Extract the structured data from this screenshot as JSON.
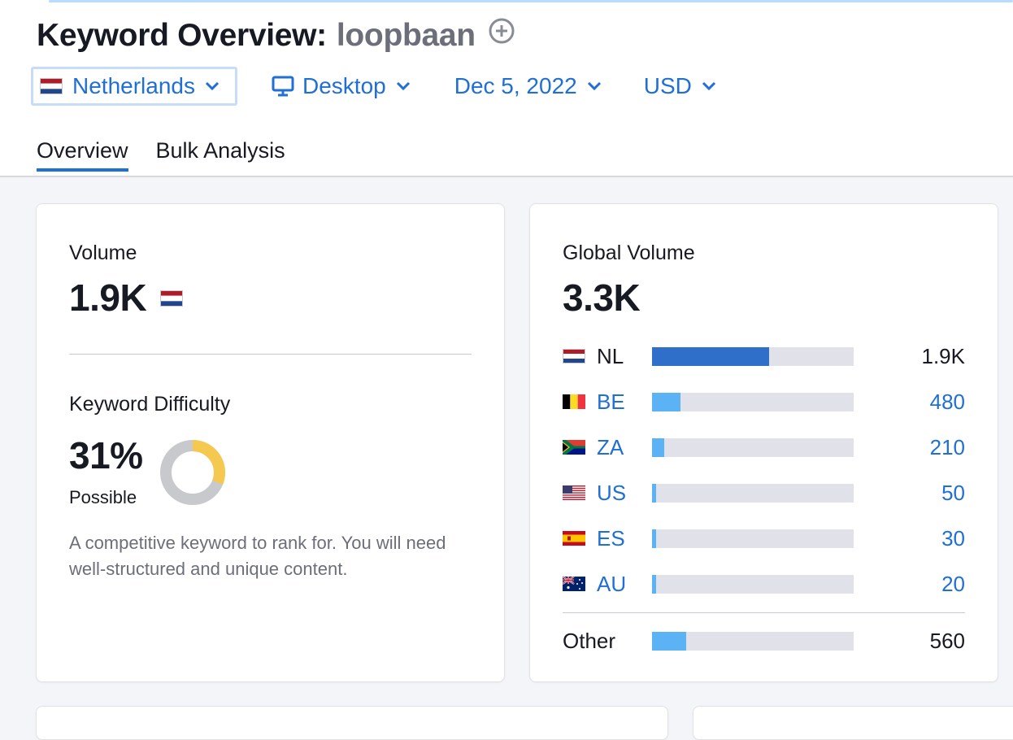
{
  "header": {
    "title_prefix": "Keyword Overview:",
    "keyword": "loopbaan",
    "filters": {
      "database": "Netherlands",
      "device": "Desktop",
      "date": "Dec 5, 2022",
      "currency": "USD"
    },
    "tabs": [
      {
        "label": "Overview",
        "active": true
      },
      {
        "label": "Bulk Analysis",
        "active": false
      }
    ]
  },
  "volume_card": {
    "volume_label": "Volume",
    "volume_value": "1.9K",
    "kd_label": "Keyword Difficulty",
    "kd_value": "31%",
    "kd_percent": 31,
    "kd_status": "Possible",
    "kd_description": "A competitive keyword to rank for. You will need well-structured and unique content."
  },
  "global_card": {
    "label": "Global Volume",
    "value": "3.3K",
    "countries": [
      {
        "code": "NL",
        "value": "1.9K",
        "share": 0.58,
        "link": false
      },
      {
        "code": "BE",
        "value": "480",
        "share": 0.14,
        "link": true
      },
      {
        "code": "ZA",
        "value": "210",
        "share": 0.06,
        "link": true
      },
      {
        "code": "US",
        "value": "50",
        "share": 0.02,
        "link": true
      },
      {
        "code": "ES",
        "value": "30",
        "share": 0.02,
        "link": true
      },
      {
        "code": "AU",
        "value": "20",
        "share": 0.02,
        "link": true
      }
    ],
    "other": {
      "label": "Other",
      "value": "560",
      "share": 0.17
    }
  },
  "colors": {
    "accent": "#1f6fd6",
    "bar_primary": "#2f6fc9",
    "bar_secondary": "#5bb2f5",
    "bar_track": "#e0e1e9",
    "kd_yellow": "#f5c94f",
    "kd_gray": "#c8c9cd"
  },
  "icons": {
    "add": "plus-circle-icon",
    "device": "desktop-monitor-icon",
    "dropdown": "chevron-down-icon"
  }
}
